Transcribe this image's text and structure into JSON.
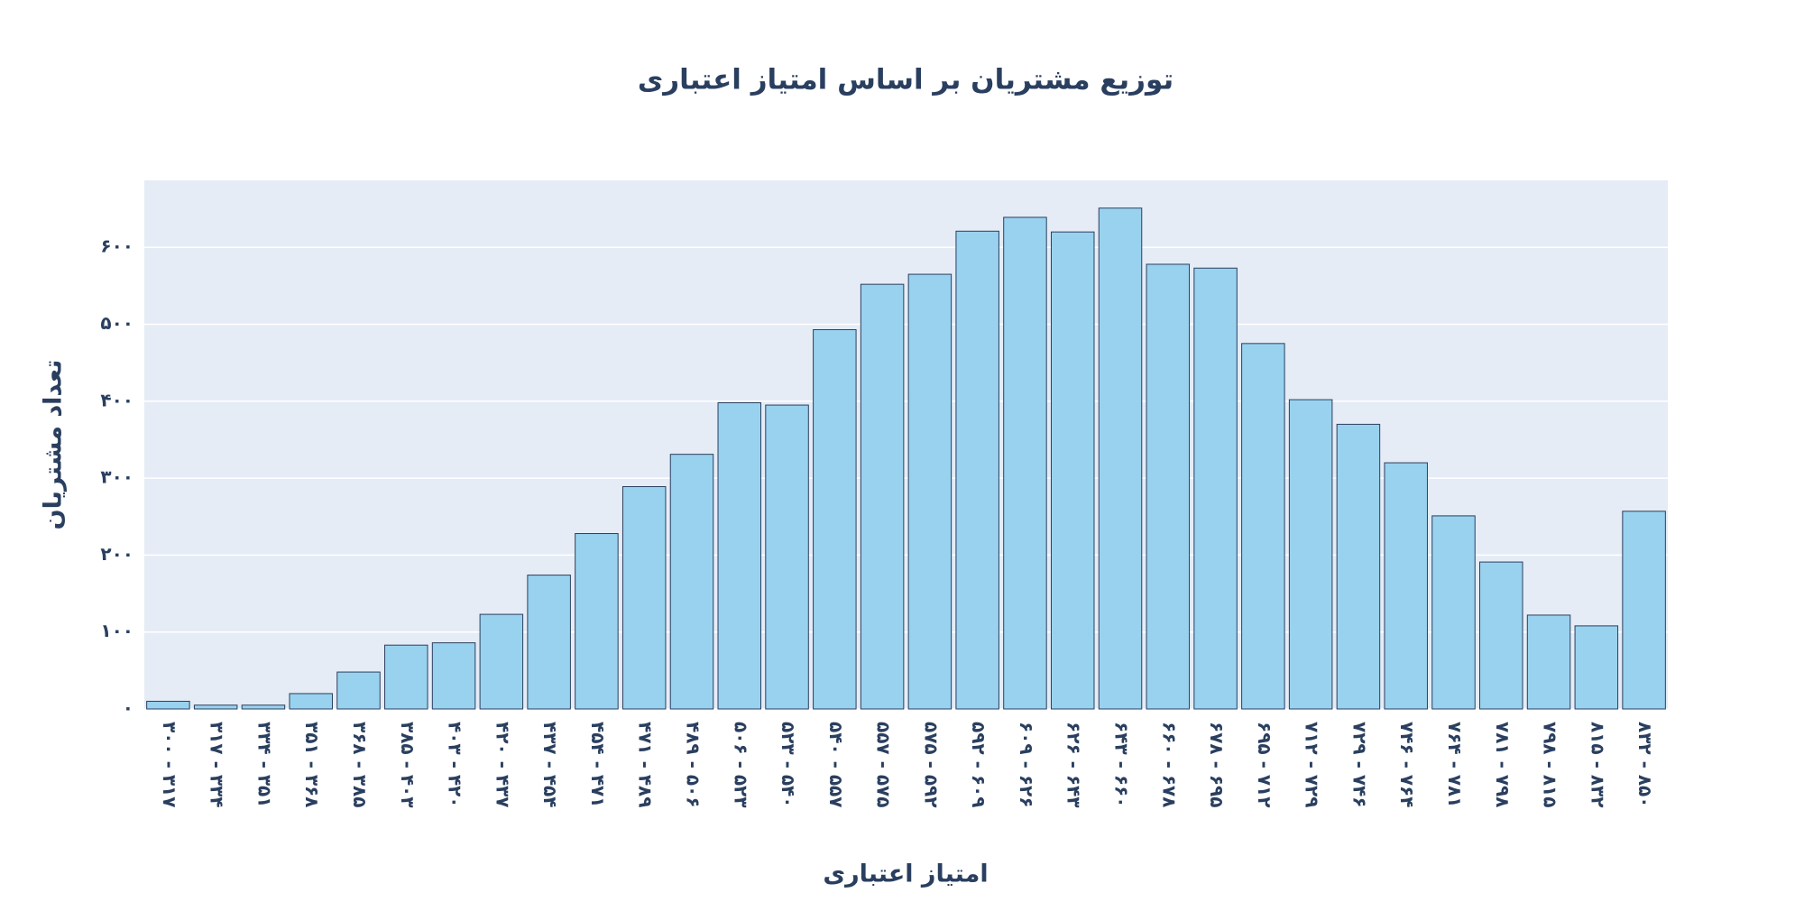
{
  "chart_data": {
    "type": "bar",
    "title": "توزیع مشتریان بر اساس امتیاز اعتباری",
    "x_label": "امتیاز اعتباری",
    "y_label": "تعداد مشتریان",
    "categories": [
      "۳۰۰ - ۳۱۷",
      "۳۱۷ - ۳۳۴",
      "۳۳۴ - ۳۵۱",
      "۳۵۱ - ۳۶۸",
      "۳۶۸ - ۳۸۵",
      "۳۸۵ - ۴۰۳",
      "۴۰۳ - ۴۲۰",
      "۴۲۰ - ۴۳۷",
      "۴۳۷ - ۴۵۴",
      "۴۵۴ - ۴۷۱",
      "۴۷۱ - ۴۸۹",
      "۴۸۹ - ۵۰۶",
      "۵۰۶ - ۵۲۳",
      "۵۲۳ - ۵۴۰",
      "۵۴۰ - ۵۵۷",
      "۵۵۷ - ۵۷۵",
      "۵۷۵ - ۵۹۲",
      "۵۹۲ - ۶۰۹",
      "۶۰۹ - ۶۲۶",
      "۶۲۶ - ۶۴۳",
      "۶۴۳ - ۶۶۰",
      "۶۶۰ - ۶۷۸",
      "۶۷۸ - ۶۹۵",
      "۶۹۵ - ۷۱۲",
      "۷۱۲ - ۷۲۹",
      "۷۲۹ - ۷۴۶",
      "۷۴۶ - ۷۶۴",
      "۷۶۴ - ۷۸۱",
      "۷۸۱ - ۷۹۸",
      "۷۹۸ - ۸۱۵",
      "۸۱۵ - ۸۳۲",
      "۸۳۲ - ۸۵۰"
    ],
    "values": [
      10,
      5,
      5,
      20,
      48,
      83,
      86,
      123,
      174,
      228,
      289,
      331,
      398,
      395,
      493,
      552,
      565,
      621,
      639,
      620,
      651,
      578,
      573,
      475,
      402,
      370,
      320,
      251,
      191,
      122,
      108,
      257
    ],
    "color": "#99d2ee",
    "edge_color": "#2a3f5f",
    "ylim": [
      0,
      687
    ],
    "yticks": [
      {
        "value": 0,
        "label": "۰"
      },
      {
        "value": 100,
        "label": "۱۰۰"
      },
      {
        "value": 200,
        "label": "۲۰۰"
      },
      {
        "value": 300,
        "label": "۳۰۰"
      },
      {
        "value": 400,
        "label": "۴۰۰"
      },
      {
        "value": 500,
        "label": "۵۰۰"
      },
      {
        "value": 600,
        "label": "۶۰۰"
      }
    ],
    "grid": true
  }
}
